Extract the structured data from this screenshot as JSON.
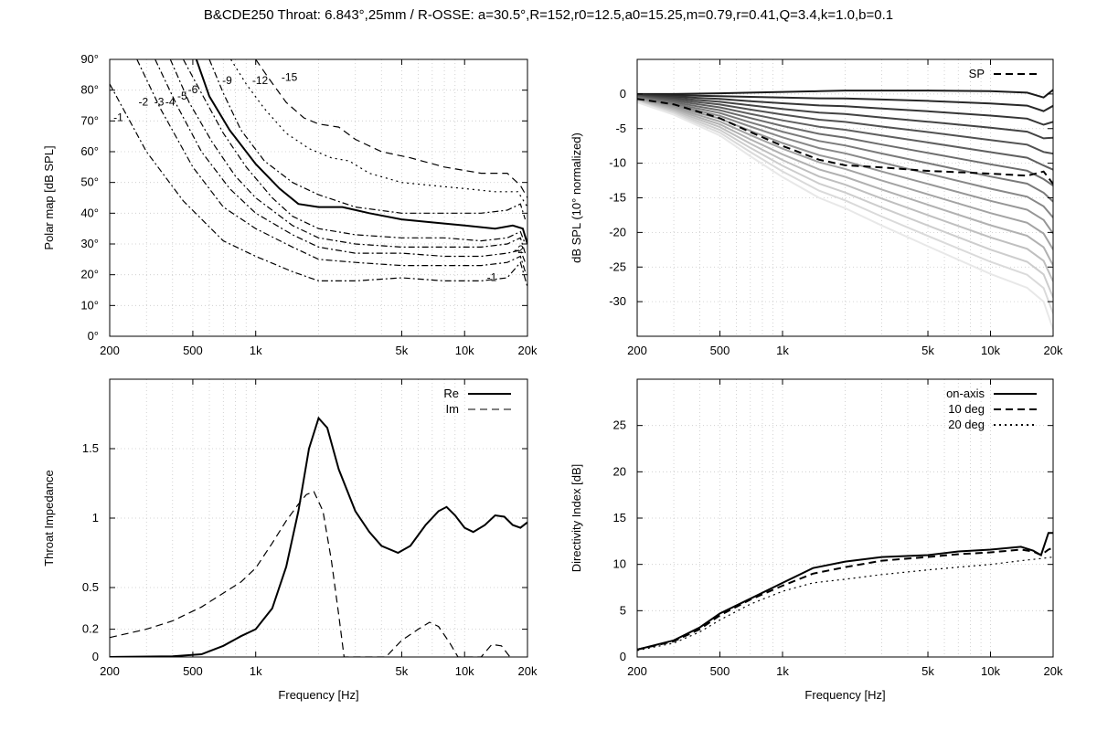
{
  "title": "B&CDE250 Throat: 6.843°,25mm / R-OSSE: a=30.5°,R=152,r0=12.5,a0=15.25,m=0.79,r=0.41,Q=3.4,k=1.0,b=0.1",
  "chart_data": [
    {
      "type": "line",
      "panel": "polar map (contours)",
      "xlabel": "",
      "ylabel": "Polar map [dB SPL]",
      "xscale": "log",
      "xlim": [
        200,
        20000
      ],
      "ylim": [
        0,
        90
      ],
      "xticks": [
        200,
        500,
        1000,
        5000,
        10000,
        20000
      ],
      "xtick_labels": [
        "200",
        "500",
        "1k",
        "5k",
        "10k",
        "20k"
      ],
      "yticks": [
        0,
        10,
        20,
        30,
        40,
        50,
        60,
        70,
        80,
        90
      ],
      "ytick_labels": [
        "0°",
        "10°",
        "20°",
        "30°",
        "40°",
        "50°",
        "60°",
        "70°",
        "80°",
        "90°"
      ],
      "grid": true,
      "series": [
        {
          "name": "-1",
          "style": "dashdot",
          "x": [
            200,
            300,
            450,
            700,
            1000,
            1500,
            2000,
            3000,
            5000,
            8000,
            12000,
            16000,
            18500,
            20000
          ],
          "y": [
            82,
            60,
            44,
            31,
            26,
            21,
            18,
            18,
            19,
            18,
            18,
            19,
            24,
            16
          ]
        },
        {
          "name": "-2",
          "style": "dashdot",
          "x": [
            270,
            350,
            500,
            700,
            1000,
            1500,
            2000,
            3000,
            5000,
            8000,
            12000,
            16000,
            18500,
            19500
          ],
          "y": [
            90,
            74,
            55,
            42,
            35,
            29,
            25,
            24,
            23,
            23,
            23,
            24,
            26,
            21
          ]
        },
        {
          "name": "-3",
          "style": "dashdot",
          "x": [
            330,
            420,
            550,
            750,
            1000,
            1500,
            2000,
            3000,
            5000,
            8000,
            12000,
            16000,
            18500,
            19500
          ],
          "y": [
            90,
            75,
            60,
            48,
            40,
            33,
            29,
            27,
            27,
            26,
            26,
            27,
            28,
            24
          ]
        },
        {
          "name": "-4",
          "style": "dashdot",
          "x": [
            390,
            480,
            620,
            800,
            1000,
            1500,
            2000,
            3000,
            5000,
            8000,
            12000,
            16000,
            18500,
            19500
          ],
          "y": [
            90,
            76,
            63,
            52,
            45,
            36,
            32,
            30,
            29,
            29,
            29,
            30,
            32,
            27
          ]
        },
        {
          "name": "-5",
          "style": "dashdot",
          "x": [
            450,
            550,
            700,
            900,
            1200,
            1500,
            2000,
            3000,
            5000,
            8000,
            12000,
            16000,
            18500,
            19500
          ],
          "y": [
            90,
            79,
            66,
            55,
            45,
            39,
            35,
            33,
            32,
            32,
            31,
            32,
            34,
            30
          ]
        },
        {
          "name": "-6",
          "style": "solid",
          "x": [
            520,
            600,
            750,
            1000,
            1300,
            1600,
            2000,
            2600,
            3500,
            5000,
            7000,
            10000,
            14000,
            17000,
            19000,
            20000
          ],
          "y": [
            90,
            78,
            67,
            56,
            48,
            43,
            42,
            42,
            40,
            38,
            37,
            36,
            35,
            36,
            35,
            30
          ]
        },
        {
          "name": "-9",
          "style": "dashdot",
          "x": [
            600,
            700,
            850,
            1100,
            1500,
            2000,
            3000,
            5000,
            8000,
            12000,
            16000,
            18500,
            19500
          ],
          "y": [
            90,
            79,
            67,
            57,
            50,
            46,
            42,
            40,
            40,
            40,
            41,
            43,
            38
          ]
        },
        {
          "name": "-12",
          "style": "dotted",
          "x": [
            760,
            900,
            1100,
            1400,
            1800,
            2300,
            2800,
            3500,
            5000,
            7000,
            10000,
            14000,
            18000,
            20000
          ],
          "y": [
            90,
            82,
            74,
            66,
            61,
            58,
            57,
            53,
            50,
            49,
            48,
            47,
            47,
            42
          ]
        },
        {
          "name": "-15",
          "style": "dashed",
          "x": [
            1000,
            1150,
            1400,
            1700,
            2000,
            2500,
            3000,
            4000,
            5500,
            8000,
            12000,
            16000,
            18500,
            20000
          ],
          "y": [
            90,
            84,
            76,
            71,
            69,
            68,
            64,
            60,
            58,
            55,
            53,
            53,
            49,
            45
          ]
        }
      ]
    },
    {
      "type": "line",
      "panel": "normalized SPL",
      "xlabel": "",
      "ylabel": "dB SPL (10° normalized)",
      "xscale": "log",
      "xlim": [
        200,
        20000
      ],
      "ylim": [
        -35,
        5
      ],
      "xticks": [
        200,
        500,
        1000,
        5000,
        10000,
        20000
      ],
      "xtick_labels": [
        "200",
        "500",
        "1k",
        "5k",
        "10k",
        "20k"
      ],
      "yticks": [
        0,
        -5,
        -10,
        -15,
        -20,
        -25,
        -30
      ],
      "ytick_labels": [
        "0",
        "-5",
        "-10",
        "-15",
        "-20",
        "-25",
        "-30"
      ],
      "grid": true,
      "legend": [
        {
          "label": "SP",
          "style": "dashed"
        }
      ],
      "legend_position": "top-right",
      "series": [
        {
          "name": "SP",
          "style": "dashed",
          "x": [
            200,
            300,
            500,
            700,
            1000,
            1500,
            2000,
            3000,
            5000,
            10000,
            15000,
            18000,
            20000
          ],
          "y": [
            -0.7,
            -1.5,
            -3.5,
            -5.5,
            -7.5,
            -9.5,
            -10.3,
            -10.6,
            -11.1,
            -11.5,
            -11.8,
            -11.2,
            -13
          ]
        }
      ],
      "curve_family": {
        "count": 16,
        "color_from": "#1a1a1a",
        "color_to": "#e8e8e8",
        "x": [
          200,
          300,
          500,
          700,
          1000,
          1500,
          2000,
          3000,
          5000,
          10000,
          15000,
          18000,
          20000
        ],
        "top_curve": [
          0,
          0,
          0.1,
          0.2,
          0.3,
          0.4,
          0.5,
          0.5,
          0.5,
          0.4,
          0.2,
          -0.5,
          0.6
        ],
        "bottom_curve": [
          -1.2,
          -3,
          -6,
          -9,
          -12,
          -15,
          -16.5,
          -19,
          -22,
          -26,
          -28,
          -30,
          -34
        ]
      }
    },
    {
      "type": "line",
      "panel": "throat impedance",
      "xlabel": "Frequency [Hz]",
      "ylabel": "Throat Impedance",
      "xscale": "log",
      "xlim": [
        200,
        20000
      ],
      "ylim": [
        0,
        2
      ],
      "xticks": [
        200,
        500,
        1000,
        5000,
        10000,
        20000
      ],
      "xtick_labels": [
        "200",
        "500",
        "1k",
        "5k",
        "10k",
        "20k"
      ],
      "yticks": [
        0,
        0.2,
        0.5,
        1,
        1.5
      ],
      "ytick_labels": [
        "0",
        "0.2",
        "0.5",
        "1",
        "1.5"
      ],
      "grid": true,
      "legend_position": "top-right",
      "series": [
        {
          "name": "Re",
          "style": "solid",
          "x": [
            200,
            400,
            550,
            700,
            850,
            1000,
            1200,
            1400,
            1600,
            1800,
            2000,
            2200,
            2500,
            3000,
            3500,
            4000,
            4800,
            5500,
            6500,
            7500,
            8200,
            9000,
            10000,
            11000,
            12500,
            14000,
            15500,
            17000,
            18500,
            20000
          ],
          "y": [
            0,
            0.005,
            0.02,
            0.08,
            0.15,
            0.2,
            0.35,
            0.65,
            1.05,
            1.5,
            1.72,
            1.65,
            1.35,
            1.05,
            0.9,
            0.8,
            0.75,
            0.8,
            0.95,
            1.05,
            1.08,
            1.02,
            0.93,
            0.9,
            0.95,
            1.02,
            1.01,
            0.95,
            0.93,
            0.97
          ]
        },
        {
          "name": "Im",
          "style": "dashed",
          "x": [
            200,
            300,
            400,
            550,
            700,
            850,
            1000,
            1200,
            1400,
            1600,
            1750,
            1900,
            2100,
            2300,
            2500,
            2650,
            4200,
            5000,
            6000,
            6800,
            7500,
            8500,
            9300,
            12000,
            13500,
            15000,
            16500
          ],
          "y": [
            0.14,
            0.2,
            0.26,
            0.36,
            0.46,
            0.54,
            0.64,
            0.82,
            0.98,
            1.1,
            1.17,
            1.19,
            1.05,
            0.7,
            0.3,
            0,
            0,
            0.12,
            0.2,
            0.25,
            0.22,
            0.1,
            0,
            0,
            0.09,
            0.08,
            0
          ]
        }
      ]
    },
    {
      "type": "line",
      "panel": "directivity index",
      "xlabel": "Frequency [Hz]",
      "ylabel": "Directivity Index [dB]",
      "xscale": "log",
      "xlim": [
        200,
        20000
      ],
      "ylim": [
        0,
        30
      ],
      "xticks": [
        200,
        500,
        1000,
        5000,
        10000,
        20000
      ],
      "xtick_labels": [
        "200",
        "500",
        "1k",
        "5k",
        "10k",
        "20k"
      ],
      "yticks": [
        0,
        5,
        10,
        15,
        20,
        25
      ],
      "ytick_labels": [
        "0",
        "5",
        "10",
        "15",
        "20",
        "25"
      ],
      "grid": true,
      "legend_position": "top-right",
      "series": [
        {
          "name": "on-axis",
          "style": "solid",
          "x": [
            200,
            300,
            400,
            500,
            700,
            1000,
            1400,
            2000,
            3000,
            5000,
            7000,
            10000,
            14000,
            16000,
            17500,
            19000,
            20000
          ],
          "y": [
            0.8,
            1.8,
            3.2,
            4.7,
            6.3,
            8,
            9.6,
            10.3,
            10.8,
            11,
            11.4,
            11.6,
            11.9,
            11.5,
            11,
            13.4,
            13.4
          ]
        },
        {
          "name": "10 deg",
          "style": "dashed",
          "x": [
            200,
            300,
            400,
            500,
            700,
            1000,
            1400,
            2000,
            3000,
            5000,
            7000,
            10000,
            14000,
            16000,
            17500,
            19000,
            20000
          ],
          "y": [
            0.8,
            1.7,
            3.0,
            4.5,
            6.2,
            7.7,
            9.0,
            9.7,
            10.4,
            10.8,
            11.1,
            11.3,
            11.6,
            11.4,
            11.0,
            11.6,
            11.8
          ]
        },
        {
          "name": "20 deg",
          "style": "dotted",
          "x": [
            200,
            300,
            400,
            500,
            700,
            1000,
            1400,
            2000,
            3000,
            5000,
            7000,
            10000,
            14000,
            17000,
            20000
          ],
          "y": [
            0.7,
            1.5,
            2.7,
            4.0,
            5.7,
            7.1,
            8.0,
            8.4,
            8.9,
            9.4,
            9.7,
            10.0,
            10.4,
            10.6,
            10.8
          ]
        }
      ]
    }
  ]
}
